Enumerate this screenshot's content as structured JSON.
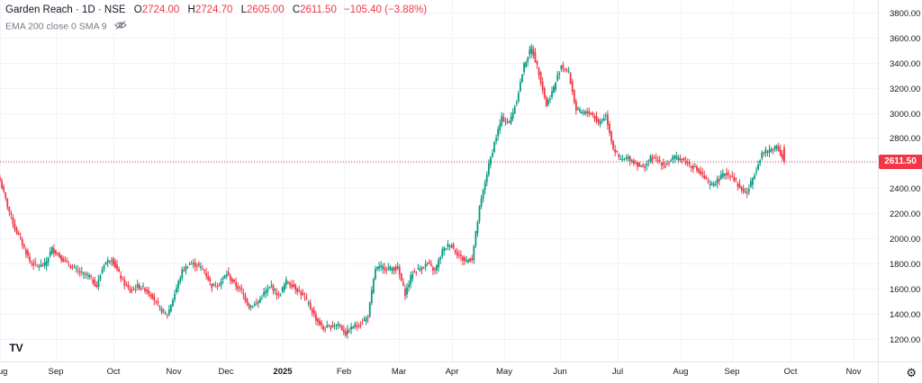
{
  "header": {
    "symbol": "Garden Reach · 1D · NSE",
    "open_label": "O",
    "open": "2724.00",
    "high_label": "H",
    "high": "2724.70",
    "low_label": "L",
    "low": "2605.00",
    "close_label": "C",
    "close": "2611.50",
    "change": "−105.40 (−3.88%)",
    "indicators": "EMA 200 close 0 SMA 9"
  },
  "last_price_label": "2611.50",
  "colors": {
    "up": "#089981",
    "down": "#f23645",
    "axis_text": "#131722",
    "grid": "#f0f3fa"
  },
  "icons": {
    "visibility": "eye-slash-icon",
    "logo": "tradingview-logo-icon",
    "settings": "gear-icon"
  },
  "logo_text": "TV",
  "chart_data": {
    "type": "candlestick",
    "title": "Garden Reach · 1D · NSE",
    "last_price": 2611.5,
    "ylim": [
      1050,
      3870
    ],
    "y_ticks": [
      1200,
      1400,
      1600,
      1800,
      2000,
      2200,
      2400,
      2600,
      2800,
      3000,
      3200,
      3400,
      3600,
      3800
    ],
    "y_tick_labels": [
      "1200.00",
      "1400.00",
      "1600.00",
      "1800.00",
      "2000.00",
      "2200.00",
      "2400.00",
      "2600.00",
      "2800.00",
      "3000.00",
      "3200.00",
      "3400.00",
      "3600.00",
      "3800.00"
    ],
    "x_labels": [
      "Aug",
      "Sep",
      "Oct",
      "Nov",
      "Dec",
      "2025",
      "Feb",
      "Mar",
      "Apr",
      "May",
      "Jun",
      "Jul",
      "Aug",
      "Sep",
      "Oct",
      "Nov"
    ],
    "grid": true,
    "anchors": [
      [
        0,
        2460
      ],
      [
        4,
        2260
      ],
      [
        8,
        2080
      ],
      [
        12,
        1960
      ],
      [
        16,
        1820
      ],
      [
        20,
        1780
      ],
      [
        24,
        1790
      ],
      [
        28,
        1920
      ],
      [
        32,
        1860
      ],
      [
        36,
        1800
      ],
      [
        40,
        1760
      ],
      [
        44,
        1720
      ],
      [
        48,
        1700
      ],
      [
        52,
        1620
      ],
      [
        56,
        1800
      ],
      [
        60,
        1840
      ],
      [
        62,
        1780
      ],
      [
        66,
        1660
      ],
      [
        70,
        1580
      ],
      [
        74,
        1620
      ],
      [
        78,
        1600
      ],
      [
        82,
        1540
      ],
      [
        86,
        1440
      ],
      [
        90,
        1390
      ],
      [
        94,
        1560
      ],
      [
        98,
        1740
      ],
      [
        102,
        1800
      ],
      [
        106,
        1790
      ],
      [
        110,
        1740
      ],
      [
        114,
        1620
      ],
      [
        118,
        1640
      ],
      [
        122,
        1720
      ],
      [
        126,
        1640
      ],
      [
        130,
        1580
      ],
      [
        134,
        1460
      ],
      [
        138,
        1480
      ],
      [
        142,
        1560
      ],
      [
        146,
        1620
      ],
      [
        150,
        1540
      ],
      [
        154,
        1660
      ],
      [
        158,
        1620
      ],
      [
        162,
        1560
      ],
      [
        166,
        1480
      ],
      [
        170,
        1360
      ],
      [
        174,
        1280
      ],
      [
        178,
        1300
      ],
      [
        182,
        1320
      ],
      [
        186,
        1240
      ],
      [
        190,
        1300
      ],
      [
        194,
        1320
      ],
      [
        198,
        1380
      ],
      [
        202,
        1760
      ],
      [
        206,
        1770
      ],
      [
        210,
        1760
      ],
      [
        214,
        1760
      ],
      [
        218,
        1560
      ],
      [
        222,
        1730
      ],
      [
        226,
        1760
      ],
      [
        230,
        1800
      ],
      [
        234,
        1740
      ],
      [
        238,
        1900
      ],
      [
        242,
        1960
      ],
      [
        246,
        1880
      ],
      [
        250,
        1820
      ],
      [
        254,
        1840
      ],
      [
        258,
        2240
      ],
      [
        262,
        2520
      ],
      [
        266,
        2760
      ],
      [
        270,
        2960
      ],
      [
        274,
        2920
      ],
      [
        278,
        3100
      ],
      [
        282,
        3380
      ],
      [
        286,
        3520
      ],
      [
        290,
        3320
      ],
      [
        294,
        3060
      ],
      [
        298,
        3200
      ],
      [
        302,
        3380
      ],
      [
        306,
        3320
      ],
      [
        310,
        3020
      ],
      [
        314,
        3000
      ],
      [
        318,
        3000
      ],
      [
        322,
        2920
      ],
      [
        326,
        2980
      ],
      [
        330,
        2720
      ],
      [
        334,
        2620
      ],
      [
        338,
        2640
      ],
      [
        342,
        2600
      ],
      [
        346,
        2560
      ],
      [
        350,
        2640
      ],
      [
        354,
        2620
      ],
      [
        358,
        2580
      ],
      [
        362,
        2640
      ],
      [
        366,
        2640
      ],
      [
        370,
        2600
      ],
      [
        374,
        2560
      ],
      [
        378,
        2500
      ],
      [
        382,
        2420
      ],
      [
        386,
        2460
      ],
      [
        390,
        2520
      ],
      [
        394,
        2500
      ],
      [
        398,
        2400
      ],
      [
        402,
        2360
      ],
      [
        406,
        2520
      ],
      [
        410,
        2680
      ],
      [
        414,
        2700
      ],
      [
        418,
        2740
      ],
      [
        422,
        2612
      ]
    ]
  }
}
